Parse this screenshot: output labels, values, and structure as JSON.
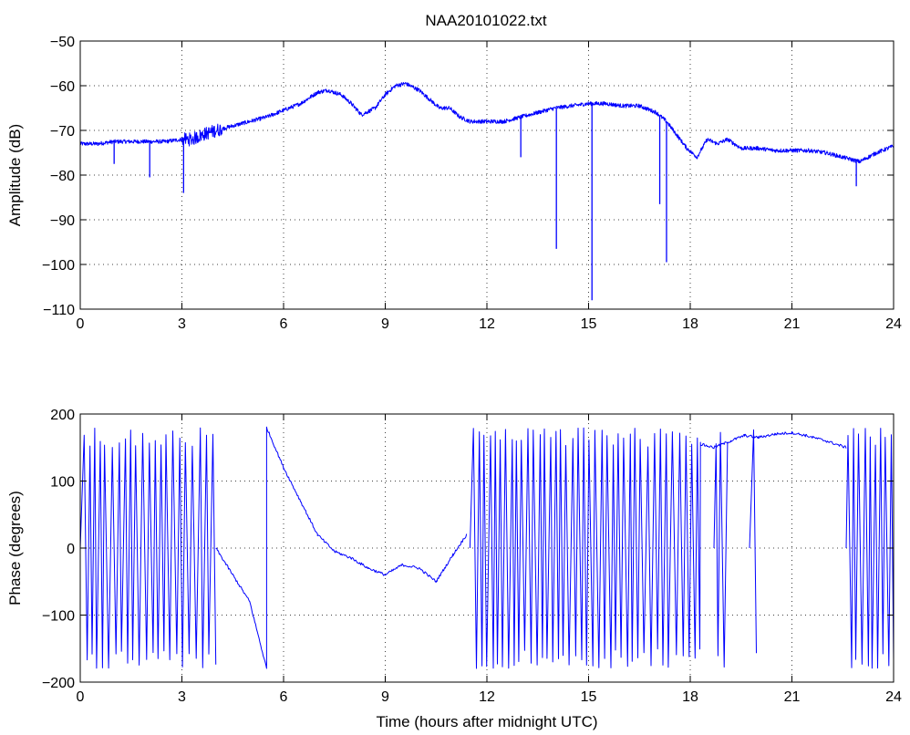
{
  "colors": {
    "trace": "#0000ff",
    "background": "#ffffff",
    "axis": "#000000"
  },
  "chart_data": [
    {
      "type": "line",
      "title": "NAA20101022.txt",
      "xlabel": "",
      "ylabel": "Amplitude (dB)",
      "xlim": [
        0,
        24
      ],
      "ylim": [
        -110,
        -50
      ],
      "xticks": [
        0,
        3,
        6,
        9,
        12,
        15,
        18,
        21,
        24
      ],
      "yticks": [
        -110,
        -100,
        -90,
        -80,
        -70,
        -60,
        -50
      ],
      "grid": true,
      "series": [
        {
          "x": [
            0,
            0.5,
            1,
            1.5,
            2,
            2.5,
            3,
            3.3,
            3.6,
            4,
            4.5,
            5,
            5.5,
            6,
            6.5,
            7,
            7.3,
            7.7,
            8,
            8.3,
            8.7,
            9,
            9.3,
            9.6,
            10,
            10.3,
            10.6,
            10.9,
            11.2,
            11.5,
            12,
            12.5,
            13,
            13.5,
            14,
            14.5,
            15,
            15.5,
            16,
            16.5,
            17,
            17.3,
            17.6,
            17.9,
            18.2,
            18.5,
            18.8,
            19.1,
            19.5,
            20,
            20.5,
            21,
            21.5,
            22,
            22.5,
            23,
            23.5,
            24
          ],
          "y": [
            -73,
            -73,
            -72.5,
            -72.5,
            -72.5,
            -72.5,
            -72,
            -72,
            -71,
            -70,
            -69,
            -68,
            -67,
            -65.5,
            -64,
            -61.5,
            -61,
            -62,
            -64,
            -66.5,
            -65,
            -62,
            -60,
            -59.5,
            -61,
            -63,
            -65,
            -65,
            -67,
            -68,
            -68,
            -68,
            -67,
            -66,
            -65,
            -64.5,
            -64,
            -64,
            -64.5,
            -64.5,
            -66,
            -68,
            -71,
            -74,
            -76,
            -72,
            -73,
            -72,
            -74,
            -74,
            -74.5,
            -74.5,
            -74.5,
            -75,
            -76,
            -77,
            -75,
            -73.5
          ]
        }
      ],
      "dips": [
        {
          "x": 1.0,
          "y": -77.5
        },
        {
          "x": 2.05,
          "y": -80.5
        },
        {
          "x": 3.05,
          "y": -84
        },
        {
          "x": 13.0,
          "y": -76
        },
        {
          "x": 14.05,
          "y": -96.5
        },
        {
          "x": 15.1,
          "y": -108
        },
        {
          "x": 17.1,
          "y": -86.5
        },
        {
          "x": 17.3,
          "y": -99.5
        },
        {
          "x": 22.9,
          "y": -82.5
        }
      ]
    },
    {
      "type": "line",
      "title": "",
      "xlabel": "Time (hours after midnight UTC)",
      "ylabel": "Phase (degrees)",
      "xlim": [
        0,
        24
      ],
      "ylim": [
        -200,
        200
      ],
      "xticks": [
        0,
        3,
        6,
        9,
        12,
        15,
        18,
        21,
        24
      ],
      "yticks": [
        -200,
        -100,
        0,
        100,
        200
      ],
      "grid": true,
      "wrapping_ranges": [
        [
          0,
          4.0
        ],
        [
          11.5,
          18.3
        ],
        [
          18.7,
          19.1
        ],
        [
          19.75,
          19.95
        ],
        [
          22.6,
          24
        ]
      ],
      "series": [
        {
          "x": [
            4.0,
            4.5,
            5.0,
            5.5,
            5.5,
            6.0,
            6.5,
            7.0,
            7.5,
            8.0,
            8.5,
            9.0,
            9.5,
            10.0,
            10.5,
            11.0,
            11.4
          ],
          "y": [
            0,
            -40,
            -80,
            -180,
            180,
            120,
            70,
            20,
            -5,
            -15,
            -30,
            -40,
            -25,
            -30,
            -50,
            -10,
            20
          ]
        },
        {
          "x": [
            18.3,
            18.7,
            19.2,
            19.6,
            20.0,
            20.5,
            21.0,
            21.4,
            22.0,
            22.6
          ],
          "y": [
            155,
            150,
            160,
            168,
            165,
            170,
            172,
            168,
            160,
            150
          ]
        }
      ]
    }
  ]
}
